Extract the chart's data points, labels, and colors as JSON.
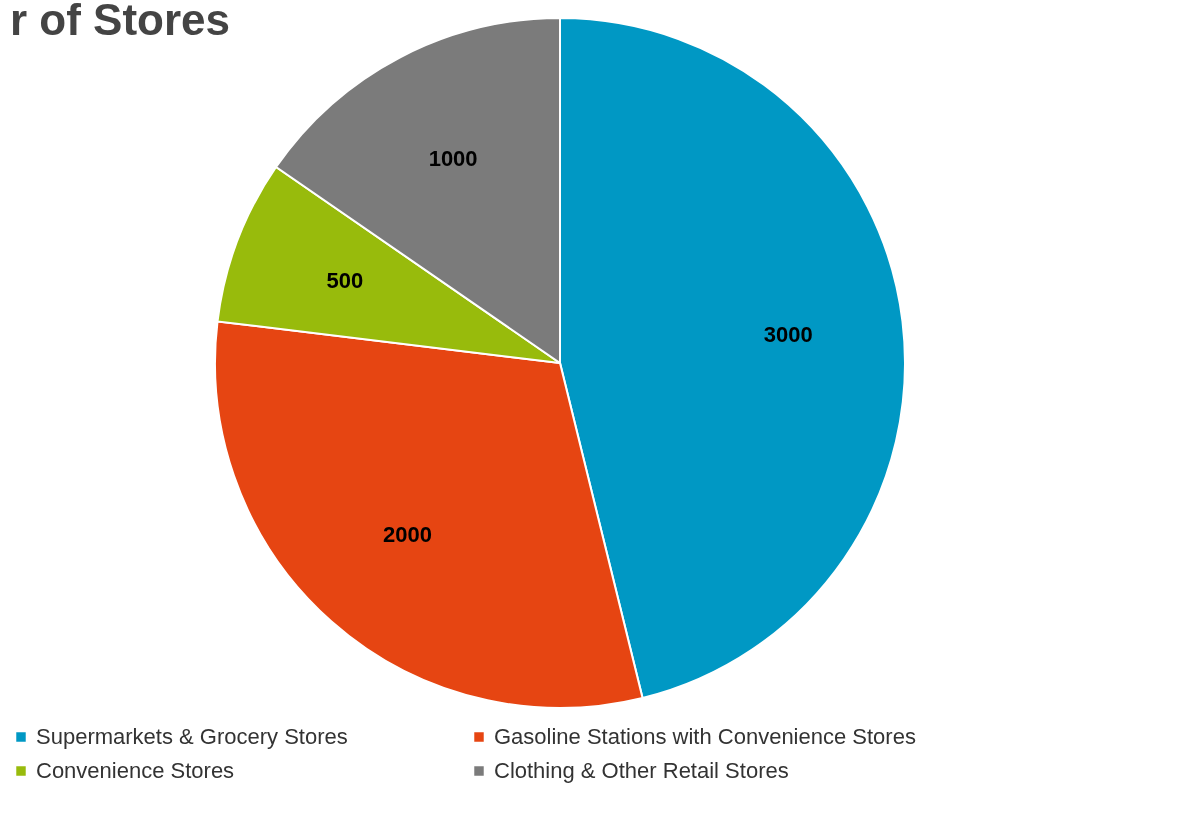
{
  "chart_data": {
    "type": "pie",
    "title": "r of Stores",
    "categories": [
      "Supermarkets & Grocery Stores",
      "Gasoline Stations with Convenience Stores",
      "Convenience Stores",
      "Clothing & Other Retail Stores"
    ],
    "values": [
      3000,
      2000,
      500,
      1000
    ],
    "colors": [
      "#0098c4",
      "#e64512",
      "#98bb0c",
      "#7b7b7b"
    ],
    "data_labels": true,
    "legend": "bottom"
  }
}
